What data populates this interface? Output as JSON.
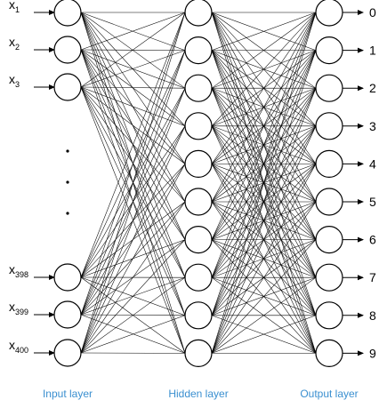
{
  "input_layer": {
    "label": "Input layer",
    "neurons": [
      {
        "base": "x",
        "sub": "1"
      },
      {
        "base": "x",
        "sub": "2"
      },
      {
        "base": "x",
        "sub": "3"
      },
      {
        "base": "x",
        "sub": "398"
      },
      {
        "base": "x",
        "sub": "399"
      },
      {
        "base": "x",
        "sub": "400"
      }
    ],
    "ellipsis_dots": 3
  },
  "hidden_layer": {
    "label": "Hidden layer",
    "neuron_count": 10
  },
  "output_layer": {
    "label": "Output layer",
    "outputs": [
      "0",
      "1",
      "2",
      "3",
      "4",
      "5",
      "6",
      "7",
      "8",
      "9"
    ]
  },
  "colors": {
    "layer_label": "#3a8fd0",
    "stroke": "#000000"
  }
}
